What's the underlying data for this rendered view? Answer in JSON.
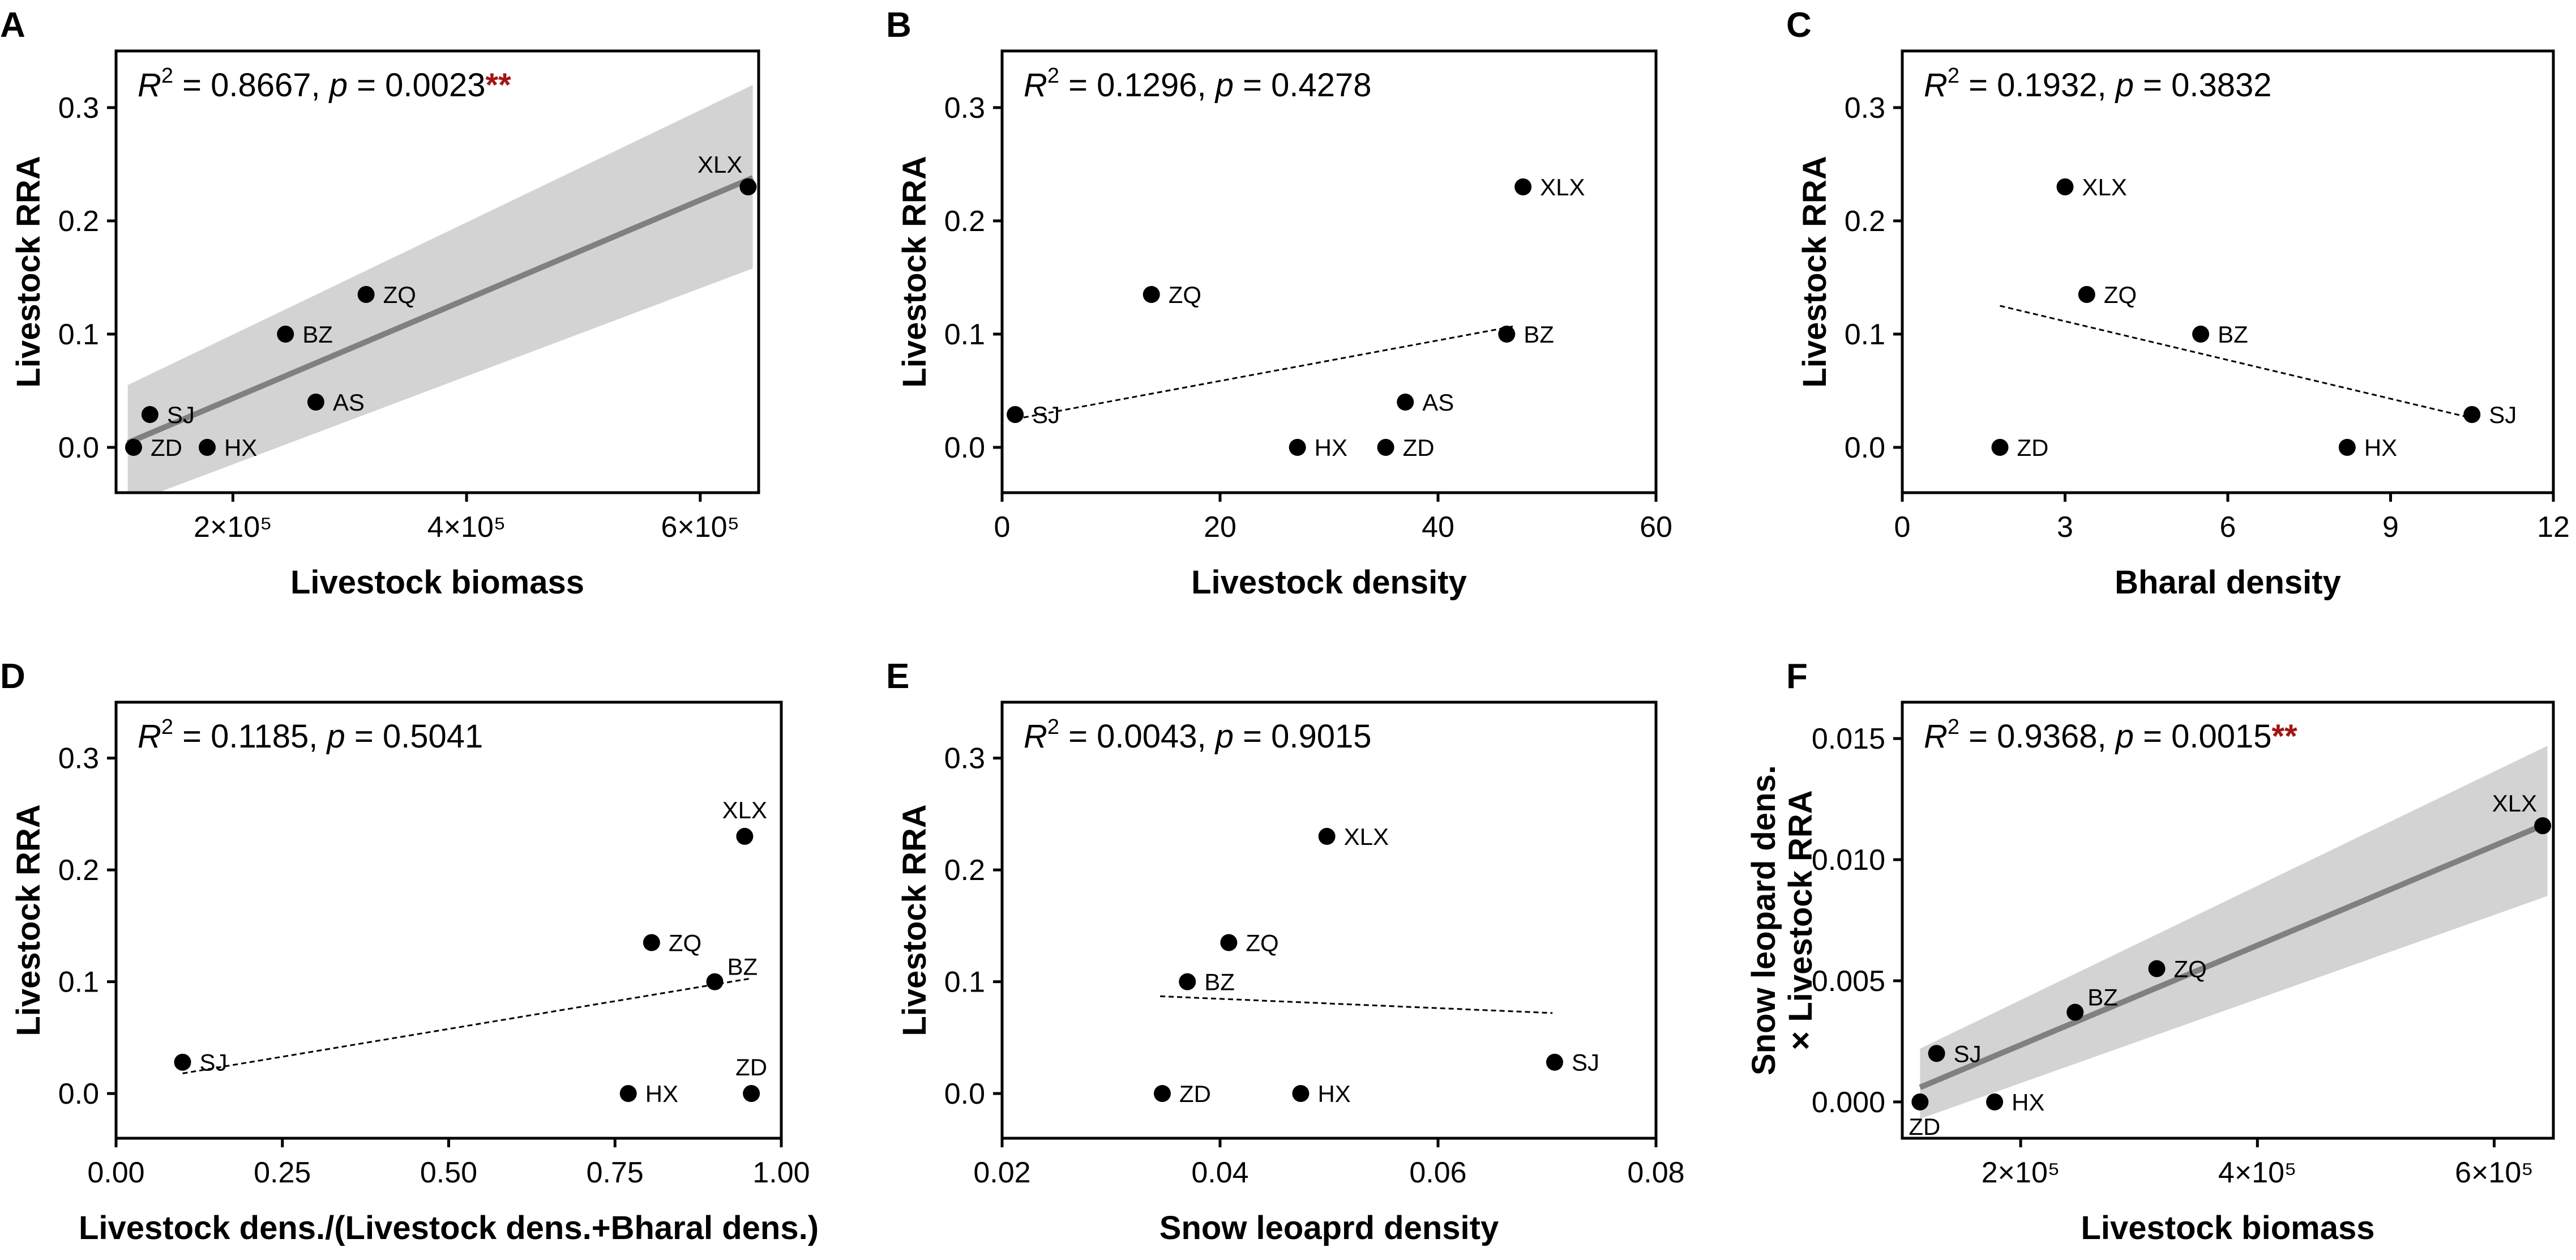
{
  "chart_data": [
    {
      "panel": "A",
      "type": "scatter",
      "xlabel": "Livestock biomass",
      "ylabel": [
        "Livestock RRA"
      ],
      "xlim": [
        100000,
        650000
      ],
      "ylim": [
        -0.04,
        0.35
      ],
      "xticks": [
        {
          "v": 200000,
          "label": "2×10⁵"
        },
        {
          "v": 400000,
          "label": "4×10⁵"
        },
        {
          "v": 600000,
          "label": "6×10⁵"
        }
      ],
      "yticks": [
        {
          "v": 0.0,
          "label": "0.0"
        },
        {
          "v": 0.1,
          "label": "0.1"
        },
        {
          "v": 0.2,
          "label": "0.2"
        },
        {
          "v": 0.3,
          "label": "0.3"
        }
      ],
      "r2": "0.8667",
      "p": "0.0023",
      "stars": "**",
      "fit": {
        "style": "solid",
        "x": [
          110000,
          645000
        ],
        "y": [
          0.004,
          0.238
        ]
      },
      "band": {
        "x": [
          110000,
          645000
        ],
        "lower": [
          -0.05,
          0.158
        ],
        "upper": [
          0.055,
          0.32
        ]
      },
      "points": [
        {
          "label": "XLX",
          "x": 641000,
          "y": 0.23,
          "pos": "above-left"
        },
        {
          "label": "ZQ",
          "x": 314000,
          "y": 0.135,
          "pos": "right"
        },
        {
          "label": "BZ",
          "x": 245000,
          "y": 0.1,
          "pos": "right"
        },
        {
          "label": "AS",
          "x": 271000,
          "y": 0.04,
          "pos": "right"
        },
        {
          "label": "SJ",
          "x": 129000,
          "y": 0.029,
          "pos": "right"
        },
        {
          "label": "HX",
          "x": 178000,
          "y": 0.0,
          "pos": "right"
        },
        {
          "label": "ZD",
          "x": 115000,
          "y": 0.0,
          "pos": "right"
        }
      ]
    },
    {
      "panel": "B",
      "type": "scatter",
      "xlabel": "Livestock density",
      "ylabel": [
        "Livestock RRA"
      ],
      "xlim": [
        0,
        60
      ],
      "ylim": [
        -0.04,
        0.35
      ],
      "xticks": [
        {
          "v": 0,
          "label": "0"
        },
        {
          "v": 20,
          "label": "20"
        },
        {
          "v": 40,
          "label": "40"
        },
        {
          "v": 60,
          "label": "60"
        }
      ],
      "yticks": [
        {
          "v": 0.0,
          "label": "0.0"
        },
        {
          "v": 0.1,
          "label": "0.1"
        },
        {
          "v": 0.2,
          "label": "0.2"
        },
        {
          "v": 0.3,
          "label": "0.3"
        }
      ],
      "r2": "0.1296",
      "p": "0.4278",
      "stars": "",
      "fit": {
        "style": "dashed",
        "x": [
          1.2,
          47.0
        ],
        "y": [
          0.025,
          0.107
        ]
      },
      "points": [
        {
          "label": "XLX",
          "x": 47.8,
          "y": 0.23,
          "pos": "right"
        },
        {
          "label": "ZQ",
          "x": 13.7,
          "y": 0.135,
          "pos": "right"
        },
        {
          "label": "BZ",
          "x": 46.3,
          "y": 0.1,
          "pos": "right"
        },
        {
          "label": "AS",
          "x": 37.0,
          "y": 0.04,
          "pos": "right"
        },
        {
          "label": "SJ",
          "x": 1.2,
          "y": 0.029,
          "pos": "right"
        },
        {
          "label": "HX",
          "x": 27.1,
          "y": 0.0,
          "pos": "right"
        },
        {
          "label": "ZD",
          "x": 35.2,
          "y": 0.0,
          "pos": "right"
        }
      ]
    },
    {
      "panel": "C",
      "type": "scatter",
      "xlabel": "Bharal density",
      "ylabel": [
        "Livestock RRA"
      ],
      "xlim": [
        0,
        12
      ],
      "ylim": [
        -0.04,
        0.35
      ],
      "xticks": [
        {
          "v": 0,
          "label": "0"
        },
        {
          "v": 3,
          "label": "3"
        },
        {
          "v": 6,
          "label": "6"
        },
        {
          "v": 9,
          "label": "9"
        },
        {
          "v": 12,
          "label": "12"
        }
      ],
      "yticks": [
        {
          "v": 0.0,
          "label": "0.0"
        },
        {
          "v": 0.1,
          "label": "0.1"
        },
        {
          "v": 0.2,
          "label": "0.2"
        },
        {
          "v": 0.3,
          "label": "0.3"
        }
      ],
      "r2": "0.1932",
      "p": "0.3832",
      "stars": "",
      "fit": {
        "style": "dashed",
        "x": [
          1.8,
          10.4
        ],
        "y": [
          0.125,
          0.027
        ]
      },
      "points": [
        {
          "label": "XLX",
          "x": 3.0,
          "y": 0.23,
          "pos": "right"
        },
        {
          "label": "ZQ",
          "x": 3.4,
          "y": 0.135,
          "pos": "right"
        },
        {
          "label": "BZ",
          "x": 5.5,
          "y": 0.1,
          "pos": "right"
        },
        {
          "label": "SJ",
          "x": 10.5,
          "y": 0.029,
          "pos": "right"
        },
        {
          "label": "ZD",
          "x": 1.8,
          "y": 0.0,
          "pos": "right"
        },
        {
          "label": "HX",
          "x": 8.2,
          "y": 0.0,
          "pos": "right"
        }
      ]
    },
    {
      "panel": "D",
      "type": "scatter",
      "xlabel": "Livestock dens./(Livestock dens.+Bharal dens.)",
      "ylabel": [
        "Livestock RRA"
      ],
      "xlim": [
        0,
        1
      ],
      "ylim": [
        -0.04,
        0.35
      ],
      "xticks": [
        {
          "v": 0,
          "label": "0.00"
        },
        {
          "v": 0.25,
          "label": "0.25"
        },
        {
          "v": 0.5,
          "label": "0.50"
        },
        {
          "v": 0.75,
          "label": "0.75"
        },
        {
          "v": 1,
          "label": "1.00"
        }
      ],
      "yticks": [
        {
          "v": 0.0,
          "label": "0.0"
        },
        {
          "v": 0.1,
          "label": "0.1"
        },
        {
          "v": 0.2,
          "label": "0.2"
        },
        {
          "v": 0.3,
          "label": "0.3"
        }
      ],
      "r2": "0.1185",
      "p": "0.5041",
      "stars": "",
      "fit": {
        "style": "dashed",
        "x": [
          0.1,
          0.955
        ],
        "y": [
          0.018,
          0.103
        ]
      },
      "points": [
        {
          "label": "XLX",
          "x": 0.945,
          "y": 0.23,
          "pos": "above"
        },
        {
          "label": "ZQ",
          "x": 0.805,
          "y": 0.135,
          "pos": "right"
        },
        {
          "label": "BZ",
          "x": 0.9,
          "y": 0.1,
          "pos": "above-right"
        },
        {
          "label": "SJ",
          "x": 0.1,
          "y": 0.028,
          "pos": "right"
        },
        {
          "label": "HX",
          "x": 0.77,
          "y": 0.0,
          "pos": "right"
        },
        {
          "label": "ZD",
          "x": 0.955,
          "y": 0.0,
          "pos": "above"
        }
      ]
    },
    {
      "panel": "E",
      "type": "scatter",
      "xlabel": "Snow leoaprd density",
      "ylabel": [
        "Livestock RRA"
      ],
      "xlim": [
        0.02,
        0.08
      ],
      "ylim": [
        -0.04,
        0.35
      ],
      "xticks": [
        {
          "v": 0.02,
          "label": "0.02"
        },
        {
          "v": 0.04,
          "label": "0.04"
        },
        {
          "v": 0.06,
          "label": "0.06"
        },
        {
          "v": 0.08,
          "label": "0.08"
        }
      ],
      "yticks": [
        {
          "v": 0.0,
          "label": "0.0"
        },
        {
          "v": 0.1,
          "label": "0.1"
        },
        {
          "v": 0.2,
          "label": "0.2"
        },
        {
          "v": 0.3,
          "label": "0.3"
        }
      ],
      "r2": "0.0043",
      "p": "0.9015",
      "stars": "",
      "fit": {
        "style": "dashed",
        "x": [
          0.0345,
          0.0705
        ],
        "y": [
          0.087,
          0.072
        ]
      },
      "points": [
        {
          "label": "XLX",
          "x": 0.0498,
          "y": 0.23,
          "pos": "right"
        },
        {
          "label": "ZQ",
          "x": 0.0408,
          "y": 0.135,
          "pos": "right"
        },
        {
          "label": "BZ",
          "x": 0.037,
          "y": 0.1,
          "pos": "right"
        },
        {
          "label": "SJ",
          "x": 0.0707,
          "y": 0.028,
          "pos": "right"
        },
        {
          "label": "ZD",
          "x": 0.0347,
          "y": 0.0,
          "pos": "right"
        },
        {
          "label": "HX",
          "x": 0.0474,
          "y": 0.0,
          "pos": "right"
        }
      ]
    },
    {
      "panel": "F",
      "type": "scatter",
      "xlabel": "Livestock biomass",
      "ylabel": [
        "Snow leopard dens.",
        "× Livestock RRA"
      ],
      "xlim": [
        100000,
        650000
      ],
      "ylim": [
        -0.0015,
        0.0165
      ],
      "xticks": [
        {
          "v": 200000,
          "label": "2×10⁵"
        },
        {
          "v": 400000,
          "label": "4×10⁵"
        },
        {
          "v": 600000,
          "label": "6×10⁵"
        }
      ],
      "yticks": [
        {
          "v": 0.0,
          "label": "0.000"
        },
        {
          "v": 0.005,
          "label": "0.005"
        },
        {
          "v": 0.01,
          "label": "0.010"
        },
        {
          "v": 0.015,
          "label": "0.015"
        }
      ],
      "r2": "0.9368",
      "p": "0.0015",
      "stars": "**",
      "fit": {
        "style": "solid",
        "x": [
          115000,
          645000
        ],
        "y": [
          0.0006,
          0.0115
        ]
      },
      "band": {
        "x": [
          115000,
          645000
        ],
        "lower": [
          -0.0007,
          0.0085
        ],
        "upper": [
          0.0022,
          0.0147
        ]
      },
      "points": [
        {
          "label": "XLX",
          "x": 641000,
          "y": 0.0114,
          "pos": "above-left"
        },
        {
          "label": "ZQ",
          "x": 315000,
          "y": 0.0055,
          "pos": "right"
        },
        {
          "label": "BZ",
          "x": 246000,
          "y": 0.0037,
          "pos": "above-right"
        },
        {
          "label": "SJ",
          "x": 129000,
          "y": 0.002,
          "pos": "right"
        },
        {
          "label": "HX",
          "x": 178000,
          "y": 0.0,
          "pos": "right"
        },
        {
          "label": "ZD",
          "x": 115000,
          "y": 0.0,
          "pos": "below"
        }
      ]
    }
  ]
}
